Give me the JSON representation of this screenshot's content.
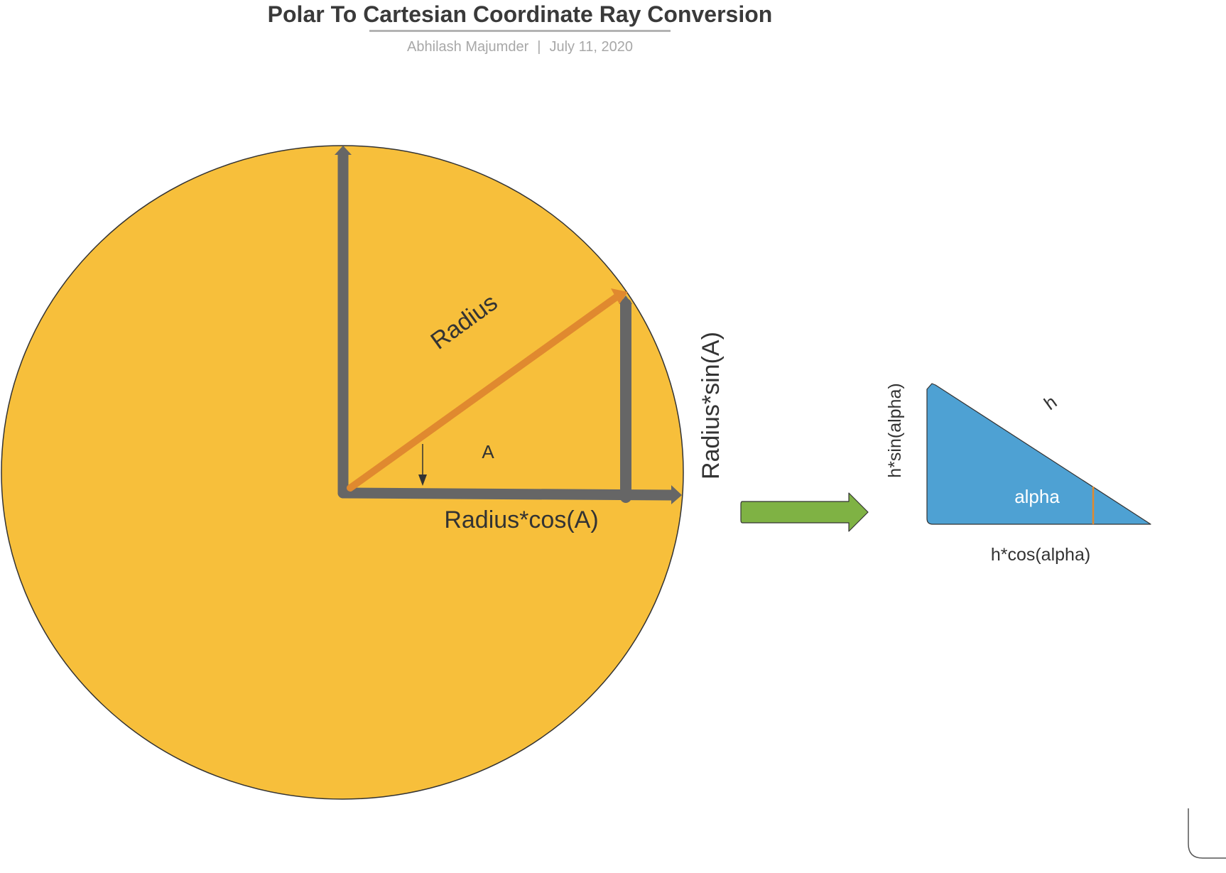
{
  "header": {
    "title": "Polar To Cartesian Coordinate Ray Conversion",
    "author": "Abhilash Majumder",
    "separator": "|",
    "date": "July 11, 2020"
  },
  "circle_diagram": {
    "radius_label": "Radius",
    "angle_label": "A",
    "cos_label": "Radius*cos(A)",
    "sin_label": "Radius*sin(A)"
  },
  "triangle_diagram": {
    "hypotenuse_label": "h",
    "angle_label": "alpha",
    "base_label": "h*cos(alpha)",
    "height_label": "h*sin(alpha)"
  },
  "colors": {
    "circle_fill": "#f7bf3b",
    "axis_gray": "#666666",
    "ray_orange": "#e0892f",
    "arrow_green": "#7fb244",
    "triangle_blue": "#4ea1d3",
    "text_dark": "#333333"
  }
}
